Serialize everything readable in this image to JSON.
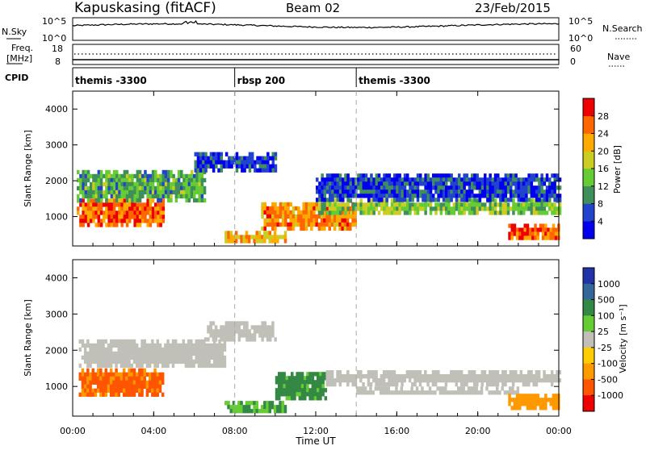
{
  "header": {
    "station": "Kapuskasing (fitACF)",
    "beam": "Beam 02",
    "date": "23/Feb/2015"
  },
  "noise_panel": {
    "left_label": "N.Sky",
    "left_ticks": [
      "10^5",
      "10^0"
    ],
    "right_ticks": [
      "10^5",
      "10^0"
    ],
    "right_label": "N.Search"
  },
  "freq_panel": {
    "left_label_1": "Freq.",
    "left_label_2": "[MHz]",
    "left_ticks": [
      "18",
      "8"
    ],
    "right_ticks": [
      "60",
      "0"
    ],
    "right_label": "Nave"
  },
  "cpid_panel": {
    "label": "CPID",
    "segments": [
      {
        "start_hour": 0,
        "name": "themis -3300"
      },
      {
        "start_hour": 8,
        "name": "rbsp 200"
      },
      {
        "start_hour": 14,
        "name": "themis -3300"
      }
    ]
  },
  "colors": {
    "power_scale": [
      "#0000ee",
      "#2244cc",
      "#3f8f5a",
      "#66cc33",
      "#cccc22",
      "#ffaa00",
      "#ff6600",
      "#ee0000"
    ],
    "velocity_scale": [
      "#2233aa",
      "#336699",
      "#338844",
      "#66cc33",
      "#c0c0b8",
      "#ffcc00",
      "#ff9900",
      "#ff5500",
      "#ee0000"
    ]
  },
  "chart_data": [
    {
      "type": "heatmap",
      "name": "power",
      "xlabel": "",
      "ylabel": "Slant Range [km]",
      "xlim": [
        0,
        24
      ],
      "ylim": [
        180,
        4500
      ],
      "yticks": [
        1000,
        2000,
        3000,
        4000
      ],
      "colorbar": {
        "label": "Power [dB]",
        "ticks": [
          "4",
          "8",
          "12",
          "16",
          "20",
          "24",
          "28"
        ],
        "range": [
          0,
          32
        ]
      },
      "regions": [
        {
          "t0": 0.2,
          "t1": 4.5,
          "r0": 800,
          "r1": 1500,
          "level": 26
        },
        {
          "t0": 0.2,
          "t1": 6.5,
          "r0": 1500,
          "r1": 2300,
          "level": 12
        },
        {
          "t0": 6.0,
          "t1": 10.0,
          "r0": 2300,
          "r1": 2800,
          "level": 6
        },
        {
          "t0": 9.3,
          "t1": 14.0,
          "r0": 700,
          "r1": 1400,
          "level": 24
        },
        {
          "t0": 12.0,
          "t1": 24.0,
          "r0": 1100,
          "r1": 1500,
          "level": 14
        },
        {
          "t0": 12.0,
          "t1": 24.0,
          "r0": 1500,
          "r1": 2200,
          "level": 5
        },
        {
          "t0": 21.5,
          "t1": 24.0,
          "r0": 400,
          "r1": 800,
          "level": 26
        },
        {
          "t0": 7.5,
          "t1": 10.5,
          "r0": 350,
          "r1": 600,
          "level": 22
        }
      ]
    },
    {
      "type": "heatmap",
      "name": "velocity",
      "xlabel": "Time UT",
      "ylabel": "Slant Range [km]",
      "xlim": [
        0,
        24
      ],
      "ylim": [
        180,
        4500
      ],
      "yticks": [
        1000,
        2000,
        3000,
        4000
      ],
      "xticks": [
        "00:00",
        "04:00",
        "08:00",
        "12:00",
        "16:00",
        "20:00",
        "00:00"
      ],
      "colorbar": {
        "label": "Velocity [m s⁻¹]",
        "ticks": [
          "1000",
          "500",
          "100",
          "25",
          "-25",
          "-100",
          "-500",
          "-1000"
        ]
      },
      "regions": [
        {
          "t0": 0.3,
          "t1": 4.5,
          "r0": 800,
          "r1": 1500,
          "level": -600
        },
        {
          "t0": 0.3,
          "t1": 7.5,
          "r0": 1600,
          "r1": 2300,
          "level": 0
        },
        {
          "t0": 6.5,
          "t1": 10.0,
          "r0": 2300,
          "r1": 2800,
          "level": 0
        },
        {
          "t0": 10.0,
          "t1": 12.5,
          "r0": 700,
          "r1": 1400,
          "level": 150
        },
        {
          "t0": 12.5,
          "t1": 24.0,
          "r0": 1100,
          "r1": 1450,
          "level": 0
        },
        {
          "t0": 14.0,
          "t1": 22.0,
          "r0": 800,
          "r1": 1000,
          "level": 0
        },
        {
          "t0": 21.5,
          "t1": 24.0,
          "r0": 400,
          "r1": 800,
          "level": -300
        },
        {
          "t0": 7.5,
          "t1": 10.5,
          "r0": 350,
          "r1": 600,
          "level": 100
        }
      ]
    }
  ]
}
